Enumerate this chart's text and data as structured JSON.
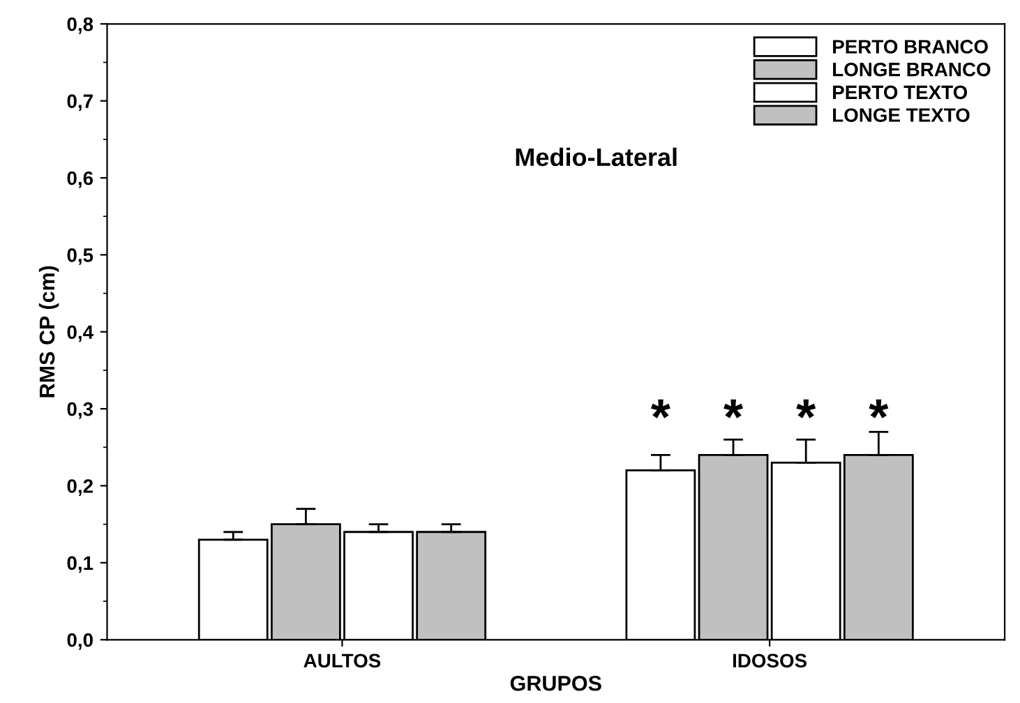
{
  "chart_data": {
    "type": "bar",
    "xlabel": "GRUPOS",
    "ylabel": "RMS CP (cm)",
    "categories": [
      "AULTOS",
      "IDOSOS"
    ],
    "series": [
      {
        "name": "PERTO BRANCO",
        "color": "#ffffff",
        "values": [
          0.13,
          0.22
        ],
        "errors": [
          [
            0.13,
            0.14
          ],
          [
            0.22,
            0.24
          ]
        ]
      },
      {
        "name": "LONGE BRANCO",
        "color": "#c0c0c0",
        "values": [
          0.15,
          0.24
        ],
        "errors": [
          [
            0.15,
            0.17
          ],
          [
            0.24,
            0.26
          ]
        ]
      },
      {
        "name": "PERTO TEXTO",
        "color": "#ffffff",
        "values": [
          0.14,
          0.23
        ],
        "errors": [
          [
            0.14,
            0.15
          ],
          [
            0.23,
            0.26
          ]
        ]
      },
      {
        "name": "LONGE TEXTO",
        "color": "#c0c0c0",
        "values": [
          0.14,
          0.24
        ],
        "errors": [
          [
            0.14,
            0.15
          ],
          [
            0.24,
            0.27
          ]
        ]
      }
    ],
    "ylim": [
      0,
      0.8
    ],
    "yticks": [
      {
        "value": 0,
        "label": "0,0"
      },
      {
        "value": 0.1,
        "label": "0,1"
      },
      {
        "value": 0.2,
        "label": "0,2"
      },
      {
        "value": 0.3,
        "label": "0,3"
      },
      {
        "value": 0.4,
        "label": "0,4"
      },
      {
        "value": 0.5,
        "label": "0,5"
      },
      {
        "value": 0.6,
        "label": "0,6"
      },
      {
        "value": 0.7,
        "label": "0,7"
      },
      {
        "value": 0.8,
        "label": "0,8"
      }
    ],
    "annotations": [
      "Medio-Lateral",
      "*",
      "*",
      "*",
      "*"
    ],
    "legend": "top right",
    "grid": false
  }
}
